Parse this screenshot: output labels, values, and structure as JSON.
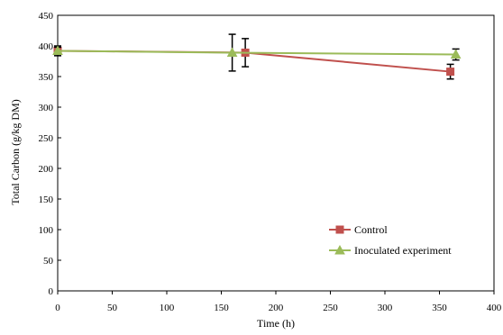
{
  "chart_data": {
    "type": "line",
    "title": "",
    "xlabel": "Time (h)",
    "ylabel": "Total Carbon (g/kg DM)",
    "xlim": [
      0,
      400
    ],
    "ylim": [
      0,
      450
    ],
    "xticks": [
      0,
      50,
      100,
      150,
      200,
      250,
      300,
      350,
      400
    ],
    "yticks": [
      0,
      50,
      100,
      150,
      200,
      250,
      300,
      350,
      400,
      450
    ],
    "grid": false,
    "legend_position": "bottom-right",
    "series": [
      {
        "name": "Control",
        "color": "#C0504D",
        "marker": "square",
        "points": [
          {
            "x": 0,
            "y": 392,
            "err": 8
          },
          {
            "x": 172,
            "y": 389,
            "err": 23
          },
          {
            "x": 360,
            "y": 358,
            "err": 12
          }
        ]
      },
      {
        "name": "Inoculated experiment",
        "color": "#9BBB59",
        "marker": "triangle",
        "points": [
          {
            "x": 0,
            "y": 392,
            "err": 6
          },
          {
            "x": 160,
            "y": 389,
            "err": 30
          },
          {
            "x": 365,
            "y": 386,
            "err": 9
          }
        ]
      }
    ]
  }
}
